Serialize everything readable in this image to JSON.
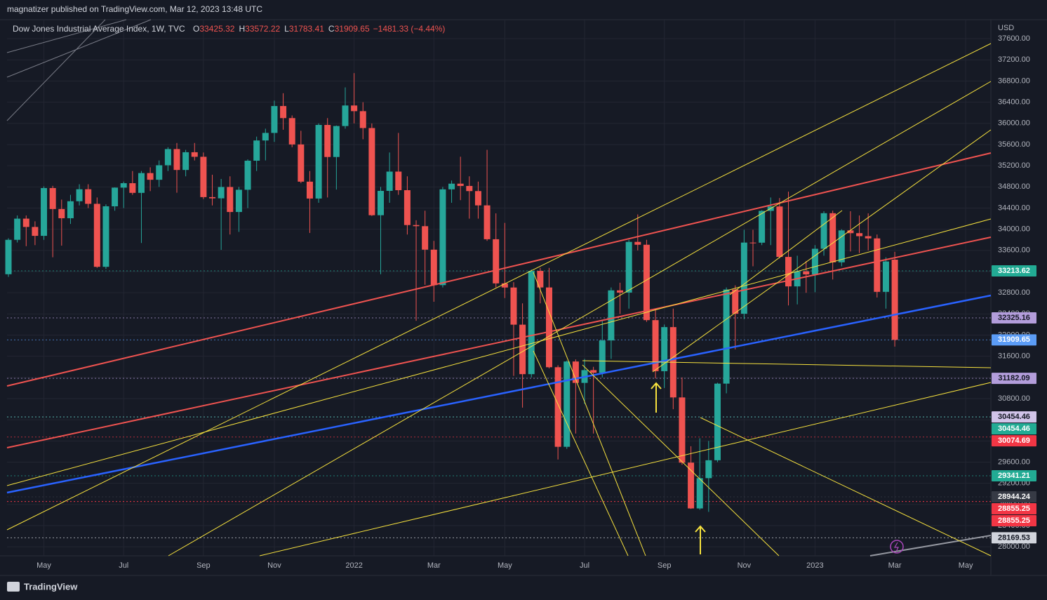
{
  "header": {
    "published": "magnatizer published on TradingView.com, Mar 12, 2023 13:48 UTC"
  },
  "footer": {
    "brand": "TradingView"
  },
  "chart_data": {
    "type": "candlestick",
    "title": "Dow Jones Industrial Average Index, 1W, TVC",
    "legend_labels": [
      "O",
      "H",
      "L",
      "C"
    ],
    "change_text": "−1481.33 (−4.44%)",
    "currency": "USD",
    "up_color": "#26a69a",
    "down_color": "#ef5350",
    "grid": true,
    "xlim": [
      -0.16,
      110.84
    ],
    "ylim": [
      27830,
      37960
    ],
    "xticks": [
      {
        "value": 4,
        "label": "May"
      },
      {
        "value": 13,
        "label": "Jul"
      },
      {
        "value": 22,
        "label": "Sep"
      },
      {
        "value": 30,
        "label": "Nov"
      },
      {
        "value": 39,
        "label": "2022"
      },
      {
        "value": 48,
        "label": "Mar"
      },
      {
        "value": 56,
        "label": "May"
      },
      {
        "value": 65,
        "label": "Jul"
      },
      {
        "value": 74,
        "label": "Sep"
      },
      {
        "value": 83,
        "label": "Nov"
      },
      {
        "value": 91,
        "label": "2023"
      },
      {
        "value": 100,
        "label": "Mar"
      },
      {
        "value": 108,
        "label": "May"
      }
    ],
    "yticks": [
      {
        "value": 28000,
        "label": "28000.00"
      },
      {
        "value": 28400,
        "label": "28400.00"
      },
      {
        "value": 28800,
        "label": "28800.00"
      },
      {
        "value": 29200,
        "label": "29200.00"
      },
      {
        "value": 29600,
        "label": "29600.00"
      },
      {
        "value": 30000,
        "label": "30000.00"
      },
      {
        "value": 30400,
        "label": "30400.00"
      },
      {
        "value": 30800,
        "label": "30800.00"
      },
      {
        "value": 31200,
        "label": "31200.00"
      },
      {
        "value": 31600,
        "label": "31600.00"
      },
      {
        "value": 32000,
        "label": "32000.00"
      },
      {
        "value": 32400,
        "label": "32400.00"
      },
      {
        "value": 32800,
        "label": "32800.00"
      },
      {
        "value": 33200,
        "label": "33200.00"
      },
      {
        "value": 33600,
        "label": "33600.00"
      },
      {
        "value": 34000,
        "label": "34000.00"
      },
      {
        "value": 34400,
        "label": "34400.00"
      },
      {
        "value": 34800,
        "label": "34800.00"
      },
      {
        "value": 35200,
        "label": "35200.00"
      },
      {
        "value": 35600,
        "label": "35600.00"
      },
      {
        "value": 36000,
        "label": "36000.00"
      },
      {
        "value": 36400,
        "label": "36400.00"
      },
      {
        "value": 36800,
        "label": "36800.00"
      },
      {
        "value": 37200,
        "label": "37200.00"
      },
      {
        "value": 37600,
        "label": "37600.00"
      }
    ],
    "price_labels": [
      {
        "value": 33213.62,
        "color": "#22ab94"
      },
      {
        "value": 32325.16,
        "color": "#b39ddb"
      },
      {
        "value": 31909.65,
        "color": "#5b9cf6"
      },
      {
        "value": 31182.09,
        "color": "#b39ddb"
      },
      {
        "value": 30454.46,
        "color": "#d1c4e9"
      },
      {
        "value": 30454.46,
        "color": "#22ab94"
      },
      {
        "value": 30074.69,
        "color": "#f23645"
      },
      {
        "value": 29341.21,
        "color": "#22ab94"
      },
      {
        "value": 28944.24,
        "color": "#363a45"
      },
      {
        "value": 28855.25,
        "color": "#f23645"
      },
      {
        "value": 28855.25,
        "color": "#f23645"
      },
      {
        "value": 28169.53,
        "color": "#d1d4dc"
      }
    ],
    "candles": [
      [
        33150,
        33830,
        33100,
        33800
      ],
      [
        33800,
        34260,
        33750,
        34200
      ],
      [
        34200,
        34260,
        33680,
        34043
      ],
      [
        34043,
        34150,
        33700,
        33875
      ],
      [
        33875,
        34810,
        33800,
        34778
      ],
      [
        34778,
        34820,
        33470,
        34382
      ],
      [
        34382,
        34560,
        33690,
        34208
      ],
      [
        34208,
        34650,
        34100,
        34529
      ],
      [
        34529,
        34850,
        34450,
        34756
      ],
      [
        34756,
        34850,
        34400,
        34480
      ],
      [
        34480,
        34600,
        33270,
        33290
      ],
      [
        33290,
        34470,
        33250,
        34433
      ],
      [
        34433,
        34790,
        34350,
        34786
      ],
      [
        34786,
        34900,
        34400,
        34870
      ],
      [
        34870,
        35100,
        34650,
        34687
      ],
      [
        34687,
        35100,
        33740,
        35061
      ],
      [
        35061,
        35170,
        34720,
        34935
      ],
      [
        34935,
        35300,
        34800,
        35209
      ],
      [
        35209,
        35550,
        35100,
        35515
      ],
      [
        35515,
        35630,
        34690,
        35120
      ],
      [
        35120,
        35500,
        35000,
        35455
      ],
      [
        35455,
        35630,
        35300,
        35369
      ],
      [
        35369,
        35450,
        34570,
        34607
      ],
      [
        34607,
        35030,
        34450,
        34584
      ],
      [
        34584,
        34950,
        33610,
        34798
      ],
      [
        34798,
        35000,
        33900,
        34326
      ],
      [
        34326,
        34800,
        33950,
        34746
      ],
      [
        34746,
        35320,
        34400,
        35295
      ],
      [
        35295,
        35750,
        35100,
        35677
      ],
      [
        35677,
        35900,
        35300,
        35820
      ],
      [
        35820,
        36430,
        35650,
        36328
      ],
      [
        36328,
        36570,
        35880,
        36100
      ],
      [
        36100,
        36150,
        35550,
        35602
      ],
      [
        35602,
        35860,
        34870,
        34899
      ],
      [
        34899,
        35100,
        33930,
        34580
      ],
      [
        34580,
        36000,
        34500,
        35971
      ],
      [
        35971,
        36100,
        34600,
        35365
      ],
      [
        35365,
        35960,
        34750,
        35950
      ],
      [
        35950,
        36680,
        35900,
        36338
      ],
      [
        36338,
        36950,
        36000,
        36231
      ],
      [
        36231,
        36400,
        35700,
        35912
      ],
      [
        35912,
        36000,
        34250,
        34265
      ],
      [
        34265,
        34800,
        33150,
        34725
      ],
      [
        34725,
        35450,
        34500,
        35089
      ],
      [
        35089,
        35820,
        34650,
        34738
      ],
      [
        34738,
        35000,
        33900,
        34079
      ],
      [
        34079,
        34170,
        32270,
        34058
      ],
      [
        34058,
        34350,
        32950,
        33614
      ],
      [
        33614,
        33780,
        32630,
        32944
      ],
      [
        32944,
        34800,
        32900,
        34754
      ],
      [
        34754,
        34920,
        34500,
        34861
      ],
      [
        34861,
        35370,
        34550,
        34818
      ],
      [
        34818,
        35000,
        34200,
        34721
      ],
      [
        34721,
        34900,
        34200,
        34451
      ],
      [
        34451,
        35500,
        33780,
        33811
      ],
      [
        33811,
        34300,
        32900,
        32977
      ],
      [
        32977,
        34120,
        32700,
        32899
      ],
      [
        32899,
        33000,
        31230,
        32197
      ],
      [
        32197,
        32600,
        30630,
        31262
      ],
      [
        31262,
        33240,
        31200,
        33213
      ],
      [
        33213,
        33270,
        32600,
        32900
      ],
      [
        32900,
        33270,
        31370,
        31393
      ],
      [
        31393,
        31430,
        29650,
        29889
      ],
      [
        29889,
        31520,
        29850,
        31501
      ],
      [
        31501,
        31540,
        30140,
        31097
      ],
      [
        31097,
        31550,
        30700,
        31338
      ],
      [
        31338,
        31400,
        30140,
        31288
      ],
      [
        31288,
        32280,
        31200,
        31899
      ],
      [
        31899,
        32900,
        31550,
        32845
      ],
      [
        32845,
        32990,
        32400,
        32803
      ],
      [
        32803,
        33800,
        32500,
        33761
      ],
      [
        33761,
        34280,
        33600,
        33707
      ],
      [
        33707,
        33800,
        32250,
        32283
      ],
      [
        32283,
        32500,
        31180,
        31318
      ],
      [
        31318,
        32200,
        31000,
        32151
      ],
      [
        32151,
        32500,
        30600,
        30822
      ],
      [
        30822,
        31200,
        29550,
        29590
      ],
      [
        29590,
        29900,
        28715,
        28725
      ],
      [
        28725,
        30050,
        28700,
        29297
      ],
      [
        29297,
        30000,
        28660,
        29635
      ],
      [
        29635,
        31100,
        29600,
        31083
      ],
      [
        31083,
        32900,
        30900,
        32861
      ],
      [
        32861,
        32940,
        31730,
        32403
      ],
      [
        32403,
        33990,
        32300,
        33748
      ],
      [
        33748,
        33990,
        33300,
        33746
      ],
      [
        33746,
        34360,
        33700,
        34347
      ],
      [
        34347,
        34600,
        33700,
        34430
      ],
      [
        34430,
        34590,
        33450,
        33477
      ],
      [
        33477,
        34710,
        32560,
        32920
      ],
      [
        32920,
        33500,
        32580,
        33204
      ],
      [
        33204,
        33400,
        32800,
        33147
      ],
      [
        33147,
        33700,
        32810,
        33631
      ],
      [
        33631,
        34340,
        33500,
        34303
      ],
      [
        34303,
        34350,
        33050,
        33375
      ],
      [
        33375,
        34000,
        33300,
        33978
      ],
      [
        33978,
        34340,
        33580,
        33926
      ],
      [
        33926,
        34260,
        33550,
        33869
      ],
      [
        33869,
        34300,
        33600,
        33827
      ],
      [
        33827,
        33900,
        32710,
        32817
      ],
      [
        32817,
        33470,
        32500,
        33391
      ],
      [
        33425.32,
        33572.22,
        31783.41,
        31909.65
      ]
    ]
  }
}
